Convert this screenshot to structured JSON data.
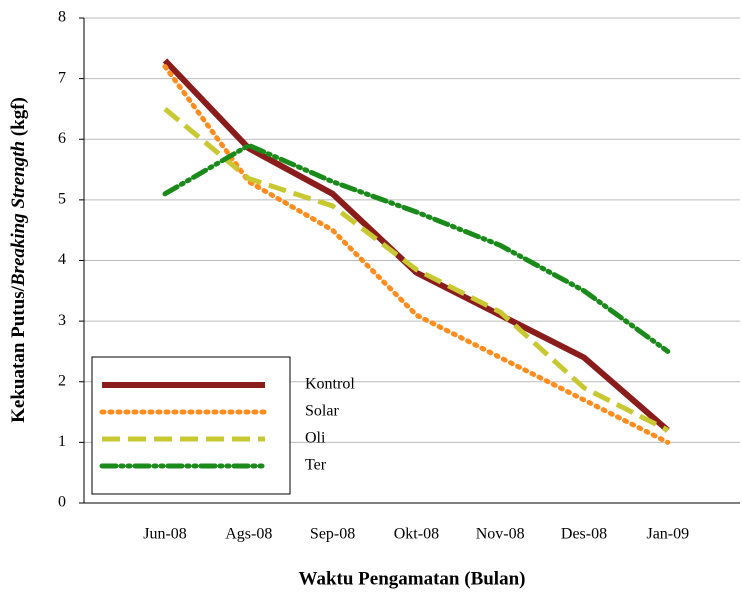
{
  "chart_data": {
    "type": "line",
    "xlabel": "Waktu Pengamatan (Bulan)",
    "ylabel": [
      "Kekuatan Putus/",
      "Breaking Strength",
      " (kgf)"
    ],
    "categories": [
      "Jun-08",
      "Ags-08",
      "Sep-08",
      "Okt-08",
      "Nov-08",
      "Des-08",
      "Jan-09"
    ],
    "series": [
      {
        "name": "Kontrol",
        "color": "#8b1c1c",
        "style": "solid",
        "values": [
          7.3,
          5.85,
          5.1,
          3.8,
          3.1,
          2.4,
          1.2
        ]
      },
      {
        "name": "Solar",
        "color": "#ff8c1e",
        "style": "dotted",
        "values": [
          7.2,
          5.3,
          4.5,
          3.1,
          2.4,
          1.7,
          1.0
        ]
      },
      {
        "name": "Oli",
        "color": "#c8c832",
        "style": "dashed",
        "values": [
          6.5,
          5.35,
          4.9,
          3.85,
          3.15,
          1.9,
          1.2
        ]
      },
      {
        "name": "Ter",
        "color": "#1a8a1a",
        "style": "dashdotdot",
        "values": [
          5.1,
          5.9,
          5.3,
          4.8,
          4.25,
          3.5,
          2.5
        ]
      }
    ],
    "ylim": [
      0,
      8
    ],
    "yticks": [
      0,
      1,
      2,
      3,
      4,
      5,
      6,
      7,
      8
    ],
    "grid": true,
    "legend": "lower left"
  }
}
